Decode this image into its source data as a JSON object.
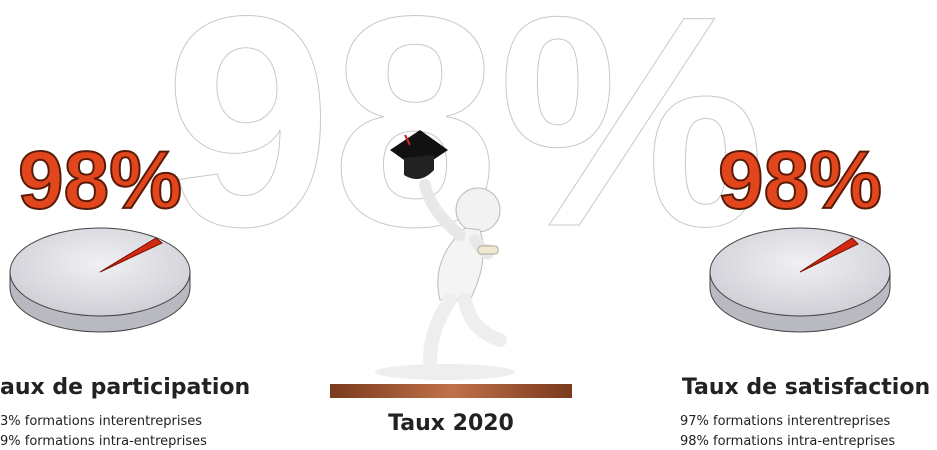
{
  "background_text": "98%",
  "left": {
    "percent": "98%",
    "title": "aux de participation",
    "lines": [
      "3% formations interentreprises",
      "9% formations intra-entreprises"
    ]
  },
  "center": {
    "caption": "Taux 2020"
  },
  "right": {
    "percent": "98%",
    "title": "Taux de satisfaction",
    "lines": [
      "97% formations interentreprises",
      "98% formations intra-entreprises"
    ]
  }
}
